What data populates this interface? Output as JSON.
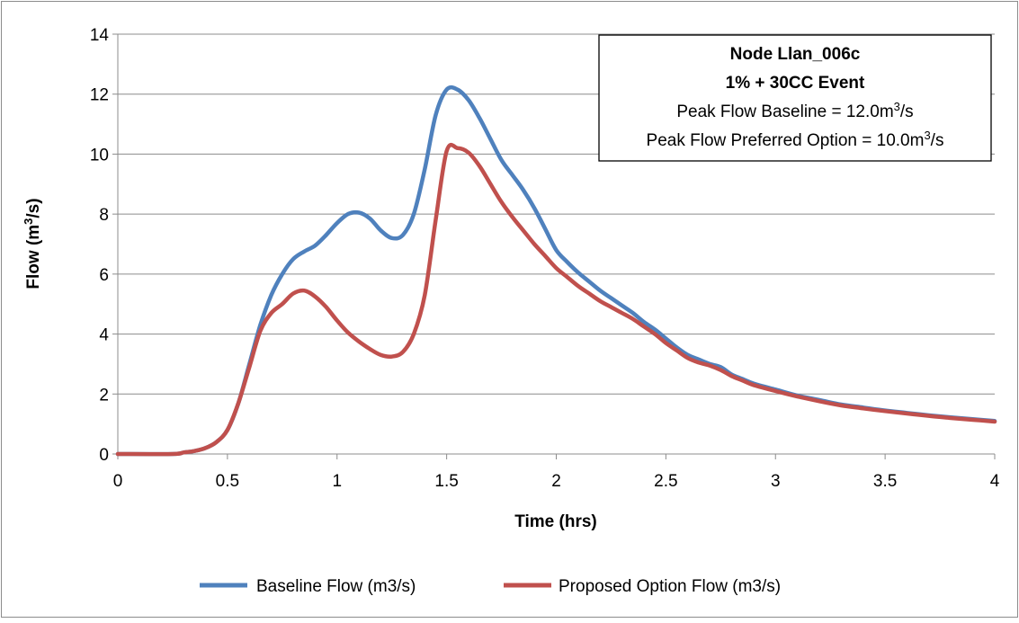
{
  "chart_data": {
    "type": "line",
    "xlabel": "Time (hrs)",
    "ylabel": "Flow (m3/s)",
    "ylabel_parts": {
      "pre": "Flow (m",
      "sup": "3",
      "post": "/s)"
    },
    "xlim": [
      0,
      4
    ],
    "ylim": [
      0,
      14
    ],
    "x_ticks": [
      "0",
      "0.5",
      "1",
      "1.5",
      "2",
      "2.5",
      "3",
      "3.5",
      "4"
    ],
    "y_ticks": [
      "0",
      "2",
      "4",
      "6",
      "8",
      "10",
      "12",
      "14"
    ],
    "grid": "horizontal",
    "legend_position": "bottom",
    "annotation": {
      "line1": "Node Llan_006c",
      "line2": "1% + 30CC Event",
      "line3": {
        "pre": "Peak Flow Baseline = 12.0m",
        "sup": "3",
        "post": "/s"
      },
      "line4": {
        "pre": "Peak Flow Preferred Option = 10.0m",
        "sup": "3",
        "post": "/s"
      }
    },
    "series": [
      {
        "name": "Baseline Flow (m3/s)",
        "color": "#4f81bd",
        "points": [
          [
            0,
            0
          ],
          [
            0.25,
            0
          ],
          [
            0.3,
            0.05
          ],
          [
            0.35,
            0.1
          ],
          [
            0.4,
            0.2
          ],
          [
            0.45,
            0.4
          ],
          [
            0.5,
            0.8
          ],
          [
            0.55,
            1.7
          ],
          [
            0.6,
            3.0
          ],
          [
            0.65,
            4.3
          ],
          [
            0.7,
            5.3
          ],
          [
            0.75,
            6.0
          ],
          [
            0.8,
            6.5
          ],
          [
            0.85,
            6.75
          ],
          [
            0.9,
            6.95
          ],
          [
            0.95,
            7.3
          ],
          [
            1.0,
            7.7
          ],
          [
            1.05,
            8.0
          ],
          [
            1.1,
            8.05
          ],
          [
            1.15,
            7.85
          ],
          [
            1.2,
            7.45
          ],
          [
            1.25,
            7.2
          ],
          [
            1.3,
            7.3
          ],
          [
            1.35,
            8.0
          ],
          [
            1.4,
            9.5
          ],
          [
            1.45,
            11.3
          ],
          [
            1.5,
            12.15
          ],
          [
            1.55,
            12.15
          ],
          [
            1.6,
            11.8
          ],
          [
            1.65,
            11.2
          ],
          [
            1.7,
            10.5
          ],
          [
            1.75,
            9.8
          ],
          [
            1.8,
            9.3
          ],
          [
            1.85,
            8.8
          ],
          [
            1.9,
            8.2
          ],
          [
            1.95,
            7.5
          ],
          [
            2.0,
            6.8
          ],
          [
            2.05,
            6.4
          ],
          [
            2.1,
            6.05
          ],
          [
            2.15,
            5.75
          ],
          [
            2.2,
            5.45
          ],
          [
            2.25,
            5.2
          ],
          [
            2.3,
            4.95
          ],
          [
            2.35,
            4.7
          ],
          [
            2.4,
            4.4
          ],
          [
            2.45,
            4.15
          ],
          [
            2.5,
            3.85
          ],
          [
            2.55,
            3.55
          ],
          [
            2.6,
            3.3
          ],
          [
            2.65,
            3.15
          ],
          [
            2.7,
            3.0
          ],
          [
            2.75,
            2.9
          ],
          [
            2.8,
            2.65
          ],
          [
            2.85,
            2.5
          ],
          [
            2.9,
            2.35
          ],
          [
            3.0,
            2.15
          ],
          [
            3.1,
            1.95
          ],
          [
            3.2,
            1.8
          ],
          [
            3.3,
            1.65
          ],
          [
            3.4,
            1.55
          ],
          [
            3.5,
            1.45
          ],
          [
            3.6,
            1.37
          ],
          [
            3.7,
            1.29
          ],
          [
            3.8,
            1.22
          ],
          [
            3.9,
            1.16
          ],
          [
            4.0,
            1.1
          ]
        ]
      },
      {
        "name": "Proposed Option Flow (m3/s)",
        "color": "#c0504d",
        "points": [
          [
            0,
            0
          ],
          [
            0.25,
            0
          ],
          [
            0.3,
            0.05
          ],
          [
            0.35,
            0.1
          ],
          [
            0.4,
            0.2
          ],
          [
            0.45,
            0.4
          ],
          [
            0.5,
            0.8
          ],
          [
            0.55,
            1.7
          ],
          [
            0.6,
            2.9
          ],
          [
            0.65,
            4.1
          ],
          [
            0.7,
            4.7
          ],
          [
            0.75,
            5.0
          ],
          [
            0.8,
            5.35
          ],
          [
            0.85,
            5.45
          ],
          [
            0.9,
            5.25
          ],
          [
            0.95,
            4.9
          ],
          [
            1.0,
            4.45
          ],
          [
            1.05,
            4.05
          ],
          [
            1.1,
            3.75
          ],
          [
            1.15,
            3.5
          ],
          [
            1.2,
            3.3
          ],
          [
            1.25,
            3.25
          ],
          [
            1.3,
            3.4
          ],
          [
            1.35,
            4.0
          ],
          [
            1.4,
            5.3
          ],
          [
            1.45,
            7.8
          ],
          [
            1.5,
            10.1
          ],
          [
            1.55,
            10.2
          ],
          [
            1.6,
            10.05
          ],
          [
            1.65,
            9.6
          ],
          [
            1.7,
            9.0
          ],
          [
            1.75,
            8.4
          ],
          [
            1.8,
            7.9
          ],
          [
            1.85,
            7.45
          ],
          [
            1.9,
            7.0
          ],
          [
            1.95,
            6.6
          ],
          [
            2.0,
            6.2
          ],
          [
            2.05,
            5.9
          ],
          [
            2.1,
            5.6
          ],
          [
            2.15,
            5.35
          ],
          [
            2.2,
            5.1
          ],
          [
            2.25,
            4.9
          ],
          [
            2.3,
            4.7
          ],
          [
            2.35,
            4.5
          ],
          [
            2.4,
            4.25
          ],
          [
            2.45,
            4.0
          ],
          [
            2.5,
            3.7
          ],
          [
            2.55,
            3.45
          ],
          [
            2.6,
            3.2
          ],
          [
            2.65,
            3.05
          ],
          [
            2.7,
            2.95
          ],
          [
            2.75,
            2.8
          ],
          [
            2.8,
            2.6
          ],
          [
            2.85,
            2.45
          ],
          [
            2.9,
            2.3
          ],
          [
            3.0,
            2.1
          ],
          [
            3.1,
            1.92
          ],
          [
            3.2,
            1.76
          ],
          [
            3.3,
            1.62
          ],
          [
            3.4,
            1.52
          ],
          [
            3.5,
            1.43
          ],
          [
            3.6,
            1.35
          ],
          [
            3.7,
            1.27
          ],
          [
            3.8,
            1.2
          ],
          [
            3.9,
            1.14
          ],
          [
            4.0,
            1.08
          ]
        ]
      }
    ]
  }
}
